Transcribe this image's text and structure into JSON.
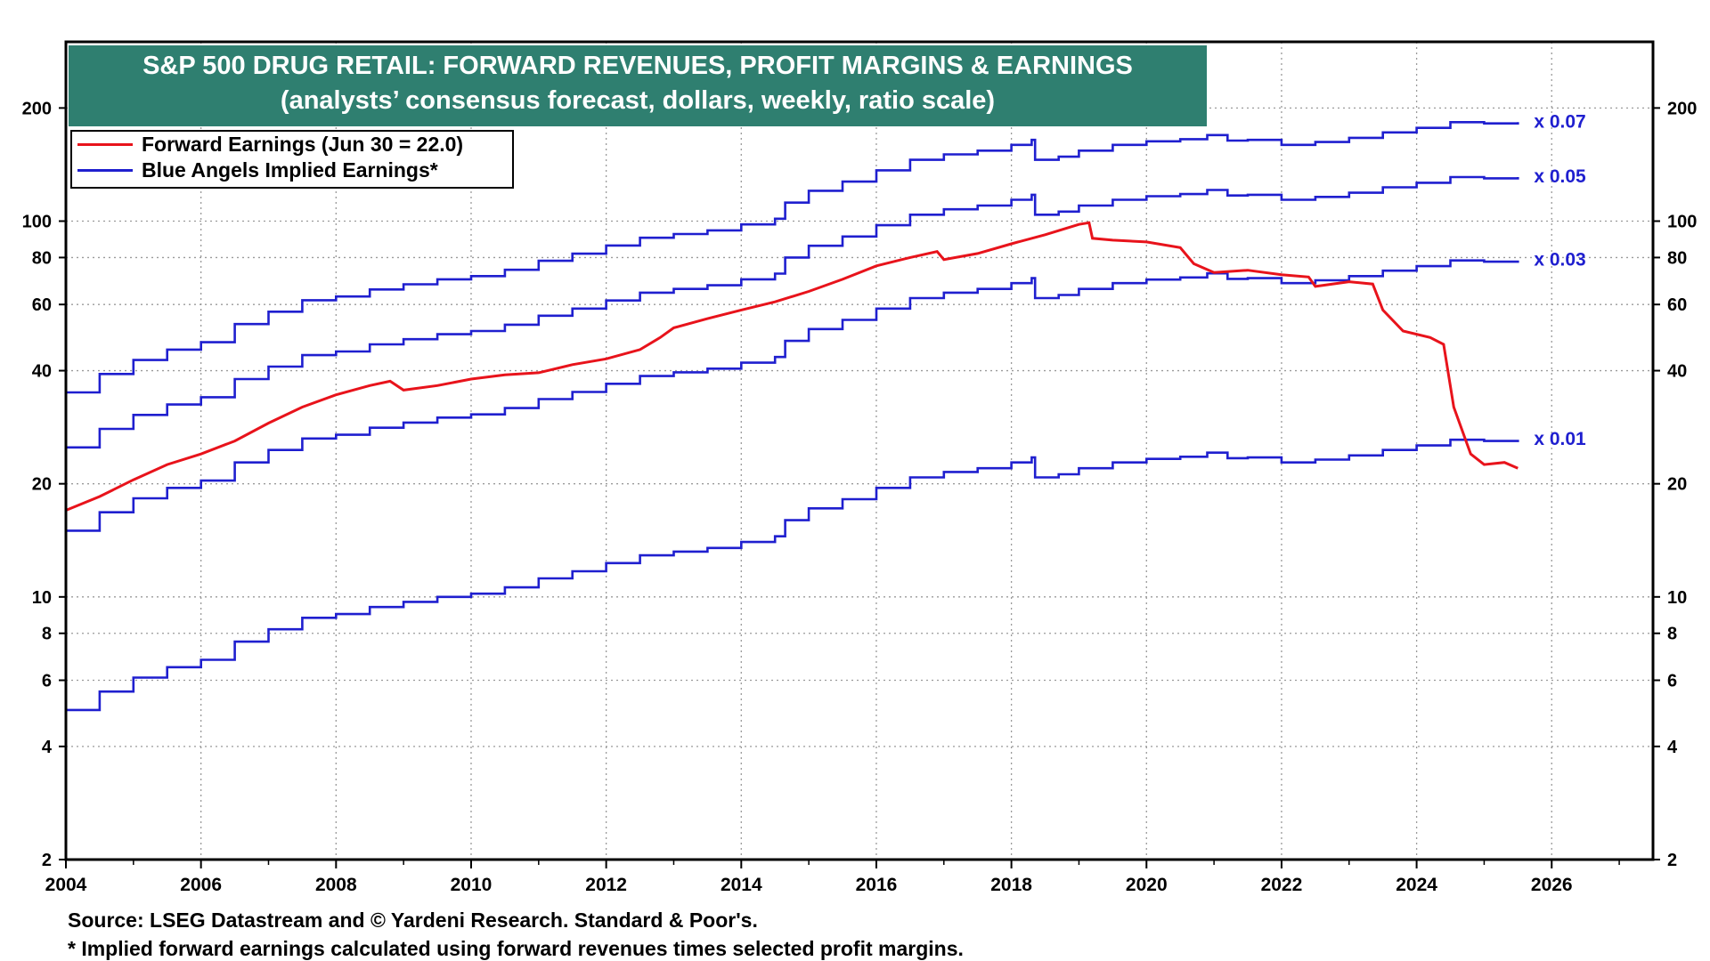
{
  "title": {
    "line1": "S&P 500 DRUG RETAIL: FORWARD REVENUES, PROFIT MARGINS & EARNINGS",
    "line2": "(analysts’ consensus forecast, dollars, weekly, ratio scale)"
  },
  "legend": [
    {
      "label": "Forward Earnings (Jun 30 = 22.0)",
      "color": "#e8131b"
    },
    {
      "label": "Blue Angels Implied Earnings*",
      "color": "#1f1fcf"
    }
  ],
  "footnotes": {
    "source": "Source: LSEG Datastream and © Yardeni Research. Standard & Poor's.",
    "note": "* Implied forward earnings calculated using forward revenues times selected profit margins."
  },
  "colors": {
    "title_bg": "#2f7f70",
    "forward": "#e8131b",
    "implied": "#1f1fcf",
    "grid": "#9a9a9a"
  },
  "chart_data": {
    "type": "line",
    "title": "S&P 500 DRUG RETAIL: FORWARD REVENUES, PROFIT MARGINS & EARNINGS",
    "subtitle": "(analysts’ consensus forecast, dollars, weekly, ratio scale)",
    "y_scale": "log",
    "xlim": [
      2004,
      2027.5
    ],
    "ylim": [
      2,
      300
    ],
    "x_ticks": [
      2004,
      2006,
      2008,
      2010,
      2012,
      2014,
      2016,
      2018,
      2020,
      2022,
      2024,
      2026
    ],
    "x_tick_labels": [
      "2004",
      "2006",
      "2008",
      "2010",
      "2012",
      "2014",
      "2016",
      "2018",
      "2020",
      "2022",
      "2024",
      "2026"
    ],
    "y_ticks": [
      2,
      4,
      6,
      8,
      10,
      20,
      40,
      60,
      80,
      100,
      200
    ],
    "y_tick_labels": [
      "2",
      "4",
      "6",
      "8",
      "10",
      "20",
      "40",
      "60",
      "80",
      "100",
      "200"
    ],
    "grid": true,
    "legend_position": "top-left",
    "forward_revenues_for_implied": {
      "x": [
        2004.0,
        2004.5,
        2005.0,
        2005.5,
        2006.0,
        2006.5,
        2007.0,
        2007.5,
        2008.0,
        2008.5,
        2009.0,
        2009.5,
        2010.0,
        2010.5,
        2011.0,
        2011.5,
        2012.0,
        2012.5,
        2013.0,
        2013.5,
        2014.0,
        2014.5,
        2014.65,
        2015.0,
        2015.5,
        2016.0,
        2016.5,
        2017.0,
        2017.5,
        2018.0,
        2018.3,
        2018.35,
        2018.7,
        2019.0,
        2019.5,
        2020.0,
        2020.5,
        2020.9,
        2021.2,
        2021.5,
        2022.0,
        2022.5,
        2023.0,
        2023.5,
        2024.0,
        2024.5,
        2025.0,
        2025.5
      ],
      "values": [
        500,
        560,
        610,
        650,
        680,
        760,
        820,
        880,
        900,
        940,
        970,
        1000,
        1020,
        1060,
        1120,
        1170,
        1230,
        1290,
        1320,
        1350,
        1400,
        1450,
        1600,
        1720,
        1820,
        1950,
        2080,
        2150,
        2200,
        2280,
        2350,
        2080,
        2120,
        2200,
        2280,
        2330,
        2360,
        2420,
        2340,
        2350,
        2280,
        2320,
        2380,
        2460,
        2530,
        2620,
        2600,
        2620
      ]
    },
    "series": [
      {
        "name": "Forward Earnings (Jun 30 = 22.0)",
        "color": "#e8131b",
        "x": [
          2004.0,
          2004.5,
          2005.0,
          2005.5,
          2006.0,
          2006.5,
          2007.0,
          2007.5,
          2008.0,
          2008.5,
          2008.8,
          2009.0,
          2009.5,
          2010.0,
          2010.5,
          2011.0,
          2011.5,
          2012.0,
          2012.5,
          2012.8,
          2013.0,
          2013.5,
          2014.0,
          2014.5,
          2015.0,
          2015.5,
          2016.0,
          2016.5,
          2016.9,
          2017.0,
          2017.5,
          2018.0,
          2018.5,
          2019.0,
          2019.15,
          2019.2,
          2019.5,
          2020.0,
          2020.5,
          2020.7,
          2021.0,
          2021.5,
          2022.0,
          2022.4,
          2022.5,
          2023.0,
          2023.35,
          2023.5,
          2023.8,
          2024.2,
          2024.4,
          2024.55,
          2024.8,
          2025.0,
          2025.3,
          2025.5
        ],
        "values": [
          17.0,
          18.5,
          20.5,
          22.5,
          24.0,
          26.0,
          29.0,
          32.0,
          34.5,
          36.5,
          37.5,
          35.5,
          36.5,
          38.0,
          39.0,
          39.5,
          41.5,
          43.0,
          45.5,
          49.0,
          52.0,
          55.0,
          58.0,
          61.0,
          65.0,
          70.0,
          76.0,
          80.0,
          83.0,
          79.0,
          82.0,
          87.0,
          92.0,
          98.0,
          99.0,
          90.0,
          89.0,
          88.0,
          85.0,
          77.0,
          73.0,
          74.0,
          72.0,
          71.0,
          67.0,
          69.0,
          68.0,
          58.0,
          51.0,
          49.0,
          47.0,
          32.0,
          24.0,
          22.5,
          22.8,
          22.0
        ]
      },
      {
        "name": "Blue Angels Implied Earnings*",
        "color": "#1f1fcf",
        "multiplier": 0.07,
        "end_label": "x 0.07"
      },
      {
        "name": "Blue Angels Implied Earnings*",
        "color": "#1f1fcf",
        "multiplier": 0.05,
        "end_label": "x 0.05"
      },
      {
        "name": "Blue Angels Implied Earnings*",
        "color": "#1f1fcf",
        "multiplier": 0.03,
        "end_label": "x 0.03"
      },
      {
        "name": "Blue Angels Implied Earnings*",
        "color": "#1f1fcf",
        "multiplier": 0.01,
        "end_label": "x 0.01"
      }
    ]
  }
}
